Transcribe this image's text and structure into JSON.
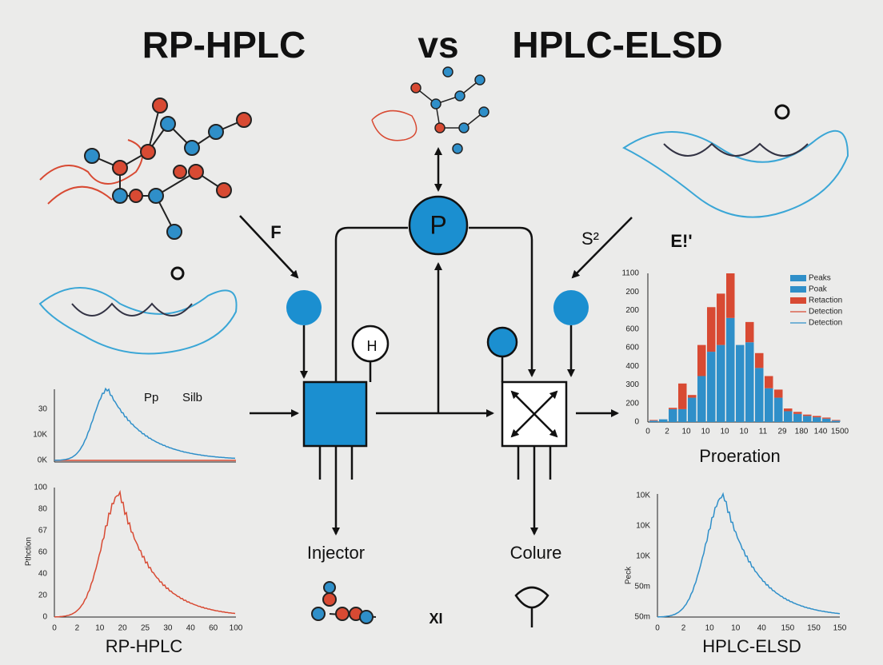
{
  "header": {
    "left": "RP-HPLC",
    "middle": "vs",
    "right": "HPLC-ELSD"
  },
  "diagram": {
    "left_arrow_label": "F",
    "pump_label": "P",
    "right_arrow_label": "S²",
    "far_right_label": "E!'",
    "small_circle_label": "H",
    "injector_label": "Injector",
    "column_label": "Colure",
    "center_bottom_label": "XI"
  },
  "left_top_plot": {
    "y_labels": [
      "30",
      "10K",
      "0K"
    ],
    "annotations": [
      "Pp",
      "Silb"
    ]
  },
  "left_bottom_plot": {
    "title": "RP-HPLC",
    "y_axis_label": "Pthction",
    "y_labels": [
      "100",
      "80",
      "67",
      "60",
      "40",
      "20",
      "0"
    ],
    "x_labels": [
      "0",
      "2",
      "10",
      "20",
      "25",
      "30",
      "40",
      "60",
      "100"
    ]
  },
  "right_bar_plot": {
    "title": "Proeration",
    "y_labels": [
      "1100",
      "200",
      "200",
      "600",
      "600",
      "400",
      "300",
      "200",
      "0"
    ],
    "x_labels": [
      "0",
      "2",
      "10",
      "10",
      "10",
      "10",
      "11",
      "29",
      "180",
      "140",
      "1500"
    ],
    "legend": [
      "Peaks",
      "Poak",
      "Retaction",
      "Detection",
      "Detection"
    ],
    "blue": [
      10,
      20,
      95,
      95,
      180,
      340,
      520,
      570,
      770,
      570,
      590,
      400,
      250,
      180,
      80,
      60,
      45,
      35,
      25,
      10
    ],
    "red": [
      5,
      0,
      10,
      190,
      20,
      230,
      330,
      380,
      330,
      0,
      150,
      110,
      90,
      60,
      20,
      15,
      10,
      10,
      8,
      5
    ]
  },
  "right_bottom_plot": {
    "title": "HPLC-ELSD",
    "y_axis_label": "Peck",
    "y_labels": [
      "10K",
      "10K",
      "10K",
      "50m",
      "50m"
    ],
    "x_labels": [
      "0",
      "2",
      "10",
      "10",
      "40",
      "150",
      "150",
      "150"
    ]
  }
}
